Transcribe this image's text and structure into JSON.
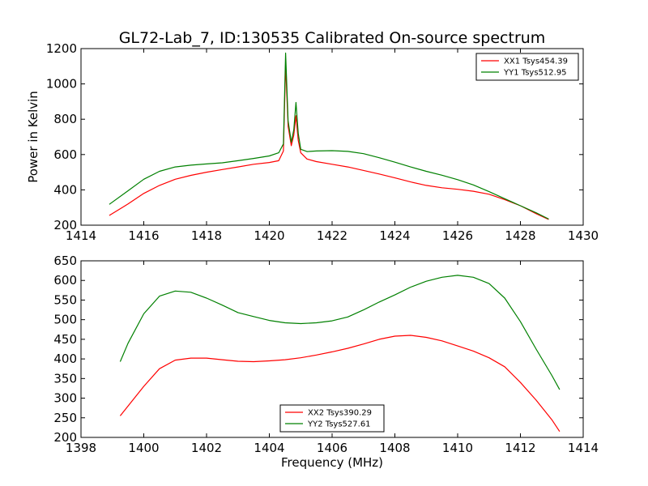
{
  "title": "GL72-Lab_7, ID:130535 Calibrated On-source spectrum",
  "chart_data": [
    {
      "type": "line",
      "ylabel": "Power in Kelvin",
      "xlabel": "",
      "xlim": [
        1414,
        1430
      ],
      "ylim": [
        200,
        1200
      ],
      "xticks": [
        "1414",
        "1416",
        "1418",
        "1420",
        "1422",
        "1424",
        "1426",
        "1428",
        "1430"
      ],
      "yticks": [
        "200",
        "400",
        "600",
        "800",
        "1000",
        "1200"
      ],
      "legend": "top-right",
      "series": [
        {
          "name": "XX1 Tsys454.39",
          "color": "#ff0000",
          "x": [
            1414.9,
            1415.5,
            1416.0,
            1416.5,
            1417.0,
            1417.5,
            1418.0,
            1418.5,
            1419.0,
            1419.5,
            1420.0,
            1420.3,
            1420.45,
            1420.52,
            1420.6,
            1420.7,
            1420.78,
            1420.85,
            1420.92,
            1421.0,
            1421.2,
            1421.5,
            1422.0,
            1422.5,
            1423.0,
            1423.5,
            1424.0,
            1424.5,
            1425.0,
            1425.5,
            1426.0,
            1426.5,
            1427.0,
            1427.5,
            1428.0,
            1428.5,
            1428.9
          ],
          "y": [
            255,
            320,
            380,
            425,
            460,
            482,
            500,
            515,
            530,
            545,
            555,
            565,
            620,
            1110,
            760,
            650,
            710,
            820,
            680,
            610,
            575,
            560,
            545,
            530,
            510,
            490,
            468,
            445,
            425,
            412,
            403,
            392,
            375,
            345,
            310,
            265,
            232
          ]
        },
        {
          "name": "YY1 Tsys512.95",
          "color": "#008000",
          "x": [
            1414.9,
            1415.5,
            1416.0,
            1416.5,
            1417.0,
            1417.5,
            1418.0,
            1418.5,
            1419.0,
            1419.5,
            1420.0,
            1420.3,
            1420.45,
            1420.52,
            1420.6,
            1420.7,
            1420.78,
            1420.85,
            1420.92,
            1421.0,
            1421.2,
            1421.5,
            1422.0,
            1422.5,
            1423.0,
            1423.5,
            1424.0,
            1424.5,
            1425.0,
            1425.5,
            1426.0,
            1426.5,
            1427.0,
            1427.5,
            1428.0,
            1428.5,
            1428.9
          ],
          "y": [
            318,
            395,
            460,
            505,
            530,
            540,
            547,
            553,
            565,
            578,
            592,
            610,
            660,
            1175,
            790,
            670,
            740,
            895,
            720,
            630,
            617,
            620,
            622,
            618,
            605,
            582,
            557,
            530,
            505,
            483,
            458,
            428,
            390,
            350,
            310,
            270,
            235
          ]
        }
      ]
    },
    {
      "type": "line",
      "ylabel": "",
      "xlabel": "Frequency (MHz)",
      "xlim": [
        1398,
        1414
      ],
      "ylim": [
        200,
        650
      ],
      "xticks": [
        "1398",
        "1400",
        "1402",
        "1404",
        "1406",
        "1408",
        "1410",
        "1412",
        "1414"
      ],
      "yticks": [
        "200",
        "250",
        "300",
        "350",
        "400",
        "450",
        "500",
        "550",
        "600",
        "650"
      ],
      "legend": "bottom-center",
      "series": [
        {
          "name": "XX2 Tsys390.29",
          "color": "#ff0000",
          "x": [
            1399.25,
            1399.5,
            1400.0,
            1400.5,
            1401.0,
            1401.5,
            1402.0,
            1402.5,
            1403.0,
            1403.5,
            1404.0,
            1404.5,
            1405.0,
            1405.5,
            1406.0,
            1406.5,
            1407.0,
            1407.5,
            1408.0,
            1408.5,
            1409.0,
            1409.5,
            1410.0,
            1410.5,
            1411.0,
            1411.5,
            1412.0,
            1412.5,
            1413.0,
            1413.25
          ],
          "y": [
            255,
            280,
            330,
            375,
            397,
            402,
            402,
            398,
            394,
            393,
            395,
            398,
            403,
            410,
            418,
            427,
            438,
            450,
            458,
            460,
            455,
            446,
            433,
            420,
            403,
            380,
            340,
            295,
            245,
            215
          ]
        },
        {
          "name": "YY2 Tsys527.61",
          "color": "#008000",
          "x": [
            1399.25,
            1399.5,
            1400.0,
            1400.5,
            1401.0,
            1401.5,
            1402.0,
            1402.5,
            1403.0,
            1403.5,
            1404.0,
            1404.5,
            1405.0,
            1405.5,
            1406.0,
            1406.5,
            1407.0,
            1407.5,
            1408.0,
            1408.5,
            1409.0,
            1409.5,
            1410.0,
            1410.5,
            1411.0,
            1411.5,
            1412.0,
            1412.5,
            1413.0,
            1413.25
          ],
          "y": [
            393,
            440,
            515,
            560,
            573,
            570,
            555,
            537,
            518,
            508,
            498,
            492,
            490,
            492,
            497,
            507,
            525,
            545,
            563,
            583,
            598,
            608,
            613,
            608,
            592,
            555,
            495,
            425,
            358,
            322
          ]
        }
      ]
    }
  ]
}
